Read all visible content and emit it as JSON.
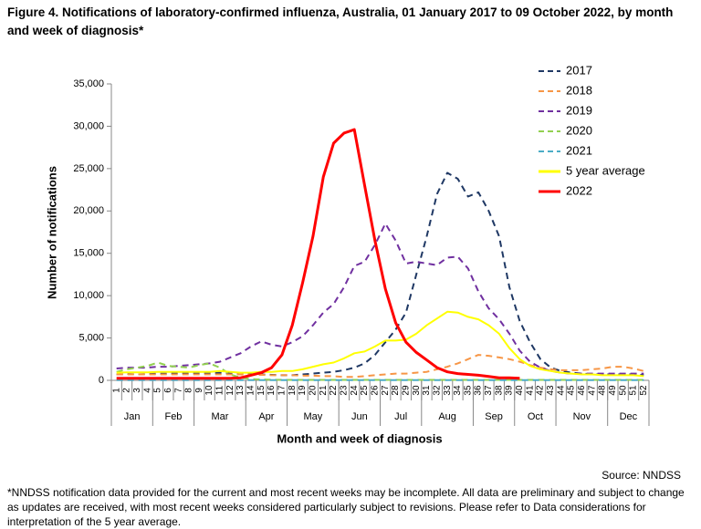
{
  "chart_data": {
    "type": "line",
    "title": "Figure 4. Notifications of laboratory-confirmed influenza, Australia, 01 January 2017 to 09 October 2022, by month and week of diagnosis*",
    "y_label": "Number of notifications",
    "x_label": "Month and week of diagnosis",
    "source": "Source: NNDSS",
    "footnote": "*NNDSS notification data provided for the current and most recent weeks may be incomplete. All data are preliminary and subject to change as updates are received, with most recent weeks considered particularly subject to revisions. Please refer to Data considerations for interpretation of the 5 year average.",
    "categories": [
      "1",
      "2",
      "3",
      "4",
      "5",
      "6",
      "7",
      "8",
      "9",
      "10",
      "11",
      "12",
      "13",
      "14",
      "15",
      "16",
      "17",
      "18",
      "19",
      "20",
      "21",
      "22",
      "23",
      "24",
      "25",
      "26",
      "27",
      "28",
      "29",
      "30",
      "31",
      "32",
      "33",
      "34",
      "35",
      "36",
      "37",
      "38",
      "39",
      "40",
      "41",
      "42",
      "43",
      "44",
      "45",
      "46",
      "47",
      "48",
      "49",
      "50",
      "51",
      "52"
    ],
    "months": [
      "Jan",
      "Feb",
      "Mar",
      "Apr",
      "May",
      "Jun",
      "Jul",
      "Aug",
      "Sep",
      "Oct",
      "Nov",
      "Dec"
    ],
    "ylim": [
      0,
      35000
    ],
    "yticks": [
      0,
      {
        "value": 5000,
        "label": "5,000"
      },
      {
        "value": 10000,
        "label": "10,000"
      },
      {
        "value": 15000,
        "label": "15,000"
      },
      {
        "value": 20000,
        "label": "20,000"
      },
      {
        "value": 25000,
        "label": "25,000"
      },
      {
        "value": 30000,
        "label": "30,000"
      },
      {
        "value": 35000,
        "label": "35,000"
      }
    ],
    "legend": "top-right",
    "series": [
      {
        "name": "2017",
        "color": "#1f3864",
        "dashed": true,
        "values": [
          700,
          750,
          700,
          750,
          800,
          800,
          850,
          900,
          900,
          900,
          900,
          800,
          800,
          750,
          700,
          650,
          600,
          600,
          700,
          800,
          900,
          1000,
          1200,
          1500,
          2000,
          3000,
          4500,
          6000,
          8000,
          12500,
          17000,
          22000,
          24500,
          23800,
          21700,
          22200,
          20000,
          17000,
          11000,
          7000,
          4500,
          2500,
          1500,
          1100,
          900,
          800,
          700,
          700,
          700,
          700,
          700,
          600
        ]
      },
      {
        "name": "2018",
        "color": "#f79646",
        "dashed": true,
        "values": [
          700,
          700,
          700,
          700,
          700,
          700,
          700,
          700,
          700,
          700,
          700,
          700,
          700,
          650,
          650,
          600,
          600,
          600,
          550,
          550,
          500,
          500,
          400,
          400,
          500,
          600,
          700,
          800,
          800,
          900,
          1000,
          1300,
          1600,
          2000,
          2500,
          3000,
          2900,
          2700,
          2500,
          2200,
          1800,
          1500,
          1300,
          1200,
          1200,
          1200,
          1300,
          1400,
          1600,
          1600,
          1400,
          1100
        ]
      },
      {
        "name": "2019",
        "color": "#7030a0",
        "dashed": true,
        "values": [
          1400,
          1500,
          1500,
          1500,
          1600,
          1600,
          1700,
          1800,
          1900,
          2000,
          2200,
          2700,
          3200,
          4000,
          4600,
          4200,
          4000,
          4500,
          5200,
          6500,
          8000,
          9000,
          11000,
          13500,
          14000,
          16000,
          18500,
          16500,
          13800,
          14000,
          13800,
          13600,
          14500,
          14600,
          13200,
          10500,
          8500,
          7200,
          5500,
          3500,
          2200,
          1500,
          1100,
          900,
          800,
          800,
          800,
          800,
          800,
          800,
          800,
          800
        ]
      },
      {
        "name": "2020",
        "color": "#92d050",
        "dashed": true,
        "values": [
          1000,
          1300,
          1500,
          1700,
          2100,
          1700,
          1600,
          1500,
          1800,
          2000,
          1500,
          700,
          300,
          150,
          100,
          80,
          60,
          50,
          50,
          50,
          50,
          50,
          50,
          50,
          50,
          50,
          50,
          50,
          50,
          50,
          50,
          50,
          50,
          50,
          50,
          50,
          50,
          50,
          50,
          50,
          50,
          50,
          50,
          50,
          50,
          50,
          50,
          50,
          50,
          50,
          50,
          50
        ]
      },
      {
        "name": "2021",
        "color": "#4bacc6",
        "dashed": true,
        "values": [
          30,
          30,
          30,
          30,
          30,
          30,
          30,
          30,
          30,
          30,
          30,
          30,
          30,
          30,
          30,
          30,
          30,
          30,
          30,
          30,
          30,
          30,
          30,
          30,
          30,
          30,
          30,
          30,
          30,
          30,
          30,
          30,
          30,
          30,
          30,
          30,
          30,
          30,
          30,
          30,
          30,
          30,
          30,
          30,
          30,
          30,
          30,
          30,
          30,
          30,
          30,
          30
        ]
      },
      {
        "name": "5 year average",
        "color": "#ffff00",
        "dashed": false,
        "values": [
          900,
          950,
          950,
          950,
          1000,
          1000,
          1000,
          1000,
          1000,
          1000,
          1100,
          1000,
          900,
          900,
          1000,
          1000,
          1100,
          1100,
          1300,
          1600,
          1900,
          2100,
          2600,
          3200,
          3400,
          4000,
          4700,
          4700,
          4800,
          5500,
          6500,
          7300,
          8100,
          8000,
          7500,
          7200,
          6500,
          5500,
          3800,
          2500,
          1700,
          1300,
          1100,
          900,
          800,
          700,
          700,
          600,
          600,
          600,
          600,
          500
        ]
      },
      {
        "name": "2022",
        "color": "#ff0000",
        "dashed": false,
        "values": [
          250,
          250,
          250,
          250,
          250,
          250,
          250,
          250,
          250,
          250,
          250,
          250,
          300,
          600,
          900,
          1500,
          3000,
          6500,
          11500,
          17000,
          24000,
          28000,
          29200,
          29600,
          23000,
          16500,
          10800,
          6800,
          4500,
          3300,
          2400,
          1500,
          1000,
          800,
          700,
          600,
          450,
          300,
          300,
          250,
          null,
          null,
          null,
          null,
          null,
          null,
          null,
          null,
          null,
          null,
          null,
          null
        ]
      }
    ]
  }
}
